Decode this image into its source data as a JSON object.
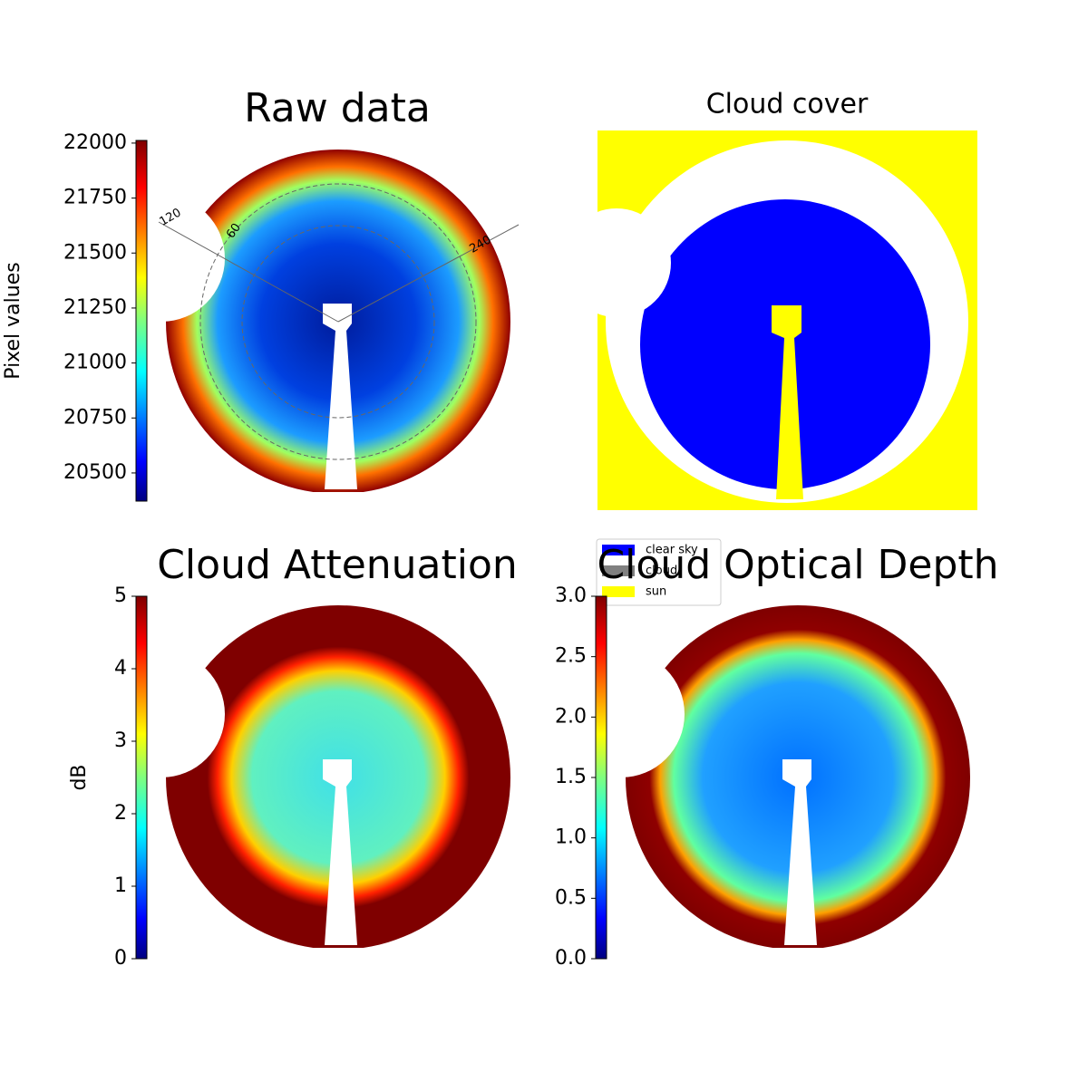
{
  "chart_data": [
    {
      "type": "image",
      "title": "Raw data",
      "ylabel": "Pixel values",
      "colormap": "jet",
      "ylim": [
        20372,
        22012
      ],
      "yticks": [
        20500,
        20750,
        21000,
        21250,
        21500,
        21750,
        22000
      ],
      "annotations": [
        "120",
        "60",
        "240"
      ]
    },
    {
      "type": "image",
      "title": "Cloud cover",
      "series": [
        {
          "name": "clear sky",
          "color": "#0000ff"
        },
        {
          "name": "cloud",
          "color": "#808080"
        },
        {
          "name": "sun",
          "color": "#ffff00"
        }
      ]
    },
    {
      "type": "image",
      "title": "Cloud Attenuation",
      "ylabel": "dB",
      "colormap": "jet",
      "ylim": [
        0,
        5
      ],
      "yticks": [
        0,
        1,
        2,
        3,
        4,
        5
      ]
    },
    {
      "type": "image",
      "title": "Cloud Optical Depth",
      "colormap": "jet",
      "ylim": [
        0,
        3
      ],
      "yticks": [
        {
          "value": 0,
          "label": "0.0"
        },
        0.5,
        {
          "value": 1,
          "label": "1.0"
        },
        1.5,
        {
          "value": 2,
          "label": "2.0"
        },
        2.5,
        {
          "value": 3,
          "label": "3.0"
        }
      ]
    }
  ]
}
